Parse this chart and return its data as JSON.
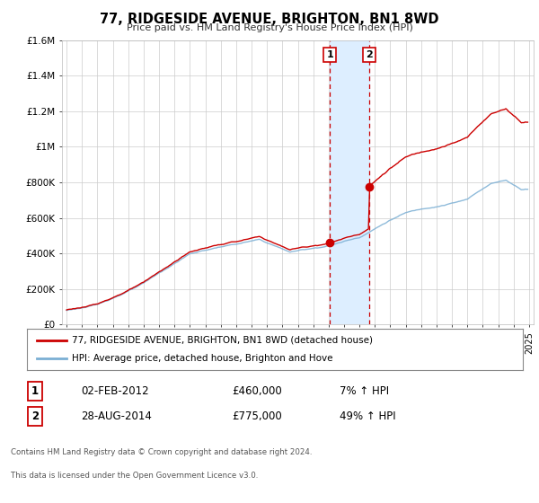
{
  "title": "77, RIDGESIDE AVENUE, BRIGHTON, BN1 8WD",
  "subtitle": "Price paid vs. HM Land Registry's House Price Index (HPI)",
  "ylim": [
    0,
    1600000
  ],
  "yticks": [
    0,
    200000,
    400000,
    600000,
    800000,
    1000000,
    1200000,
    1400000,
    1600000
  ],
  "ytick_labels": [
    "£0",
    "£200K",
    "£400K",
    "£600K",
    "£800K",
    "£1M",
    "£1.2M",
    "£1.4M",
    "£1.6M"
  ],
  "xlim_start": 1994.7,
  "xlim_end": 2025.3,
  "sale1_date": 2012.085,
  "sale1_price": 460000,
  "sale1_label": "02-FEB-2012",
  "sale1_pct": "7%",
  "sale2_date": 2014.65,
  "sale2_price": 775000,
  "sale2_label": "28-AUG-2014",
  "sale2_pct": "49%",
  "red_color": "#cc0000",
  "blue_color": "#7bafd4",
  "shade_color": "#ddeeff",
  "legend1": "77, RIDGESIDE AVENUE, BRIGHTON, BN1 8WD (detached house)",
  "legend2": "HPI: Average price, detached house, Brighton and Hove",
  "footer1": "Contains HM Land Registry data © Crown copyright and database right 2024.",
  "footer2": "This data is licensed under the Open Government Licence v3.0.",
  "bg_color": "#ffffff",
  "grid_color": "#cccccc"
}
